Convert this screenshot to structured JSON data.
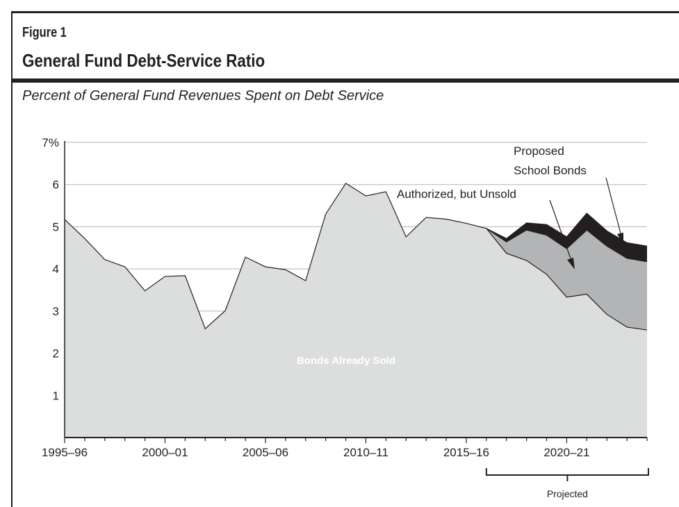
{
  "figure_label": "Figure 1",
  "title": "General Fund Debt-Service Ratio",
  "subtitle": "Percent of General Fund Revenues Spent on Debt Service",
  "colors": {
    "sold": "#dcdddd",
    "authorized": "#b3b4b6",
    "proposed": "#231f20",
    "line": "#231f20",
    "grid": "#b3b4b6"
  },
  "chart_data": {
    "type": "area",
    "stacked": true,
    "title": "General Fund Debt-Service Ratio",
    "subtitle": "Percent of General Fund Revenues Spent on Debt Service",
    "xlabel": "",
    "ylabel": "",
    "ylim": [
      0,
      7
    ],
    "y_ticks": [
      1,
      2,
      3,
      4,
      5,
      6,
      7
    ],
    "y_tick_labels": [
      "1",
      "2",
      "3",
      "4",
      "5",
      "6",
      "7%"
    ],
    "grid": true,
    "x": [
      "1995–96",
      "1996–97",
      "1997–98",
      "1998–99",
      "1999–00",
      "2000–01",
      "2001–02",
      "2002–03",
      "2003–04",
      "2004–05",
      "2005–06",
      "2006–07",
      "2007–08",
      "2008–09",
      "2009–10",
      "2010–11",
      "2011–12",
      "2012–13",
      "2013–14",
      "2014–15",
      "2015–16",
      "2016–17",
      "2017–18",
      "2018–19",
      "2019–20",
      "2020–21",
      "2021–22",
      "2022–23",
      "2023–24",
      "2024–25"
    ],
    "x_tick_labels": [
      "1995–96",
      "2000–01",
      "2005–06",
      "2010–11",
      "2015–16",
      "2020–21"
    ],
    "series": [
      {
        "name": "Bonds Already Sold",
        "values": [
          5.17,
          4.72,
          4.22,
          4.05,
          3.48,
          3.82,
          3.84,
          2.58,
          3.01,
          4.28,
          4.05,
          3.98,
          3.72,
          5.3,
          6.03,
          5.73,
          5.83,
          4.76,
          5.22,
          5.18,
          5.08,
          4.96,
          4.37,
          4.2,
          3.87,
          3.33,
          3.4,
          2.92,
          2.62,
          2.55
        ]
      },
      {
        "name": "Authorized, but Unsold",
        "values": [
          0,
          0,
          0,
          0,
          0,
          0,
          0,
          0,
          0,
          0,
          0,
          0,
          0,
          0,
          0,
          0,
          0,
          0,
          0,
          0,
          0,
          0,
          0.27,
          0.72,
          0.93,
          1.15,
          1.52,
          1.62,
          1.63,
          1.62
        ]
      },
      {
        "name": "Proposed School Bonds",
        "values": [
          0,
          0,
          0,
          0,
          0,
          0,
          0,
          0,
          0,
          0,
          0,
          0,
          0,
          0,
          0,
          0,
          0,
          0,
          0,
          0,
          0,
          0,
          0.08,
          0.17,
          0.25,
          0.28,
          0.4,
          0.36,
          0.37,
          0.37
        ]
      }
    ],
    "projected_label": "Projected",
    "projected_range": [
      "2016–17",
      "2024–25"
    ],
    "annotations": [
      "Bonds Already Sold",
      "Authorized, but Unsold",
      "Proposed",
      "School Bonds"
    ]
  }
}
